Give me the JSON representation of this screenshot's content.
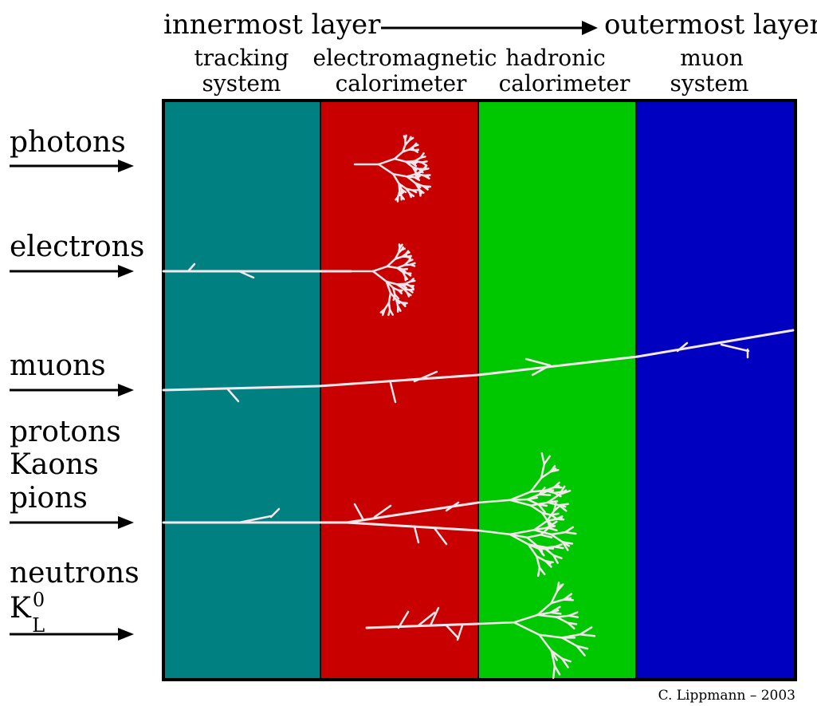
{
  "header": {
    "left": "innermost layer",
    "right": "outermost layer"
  },
  "layers": [
    {
      "line1": "tracking",
      "line2": "system",
      "color": "#008080"
    },
    {
      "line1": "electromagnetic",
      "line2": "calorimeter",
      "color": "#c80000"
    },
    {
      "line1": "hadronic",
      "line2": "calorimeter",
      "color": "#00c800"
    },
    {
      "line1": "muon",
      "line2": "system",
      "color": "#0000c0"
    }
  ],
  "particles": [
    {
      "lines": [
        "photons"
      ]
    },
    {
      "lines": [
        "electrons"
      ]
    },
    {
      "lines": [
        "muons"
      ]
    },
    {
      "lines": [
        "protons",
        "Kaons",
        "pions"
      ]
    },
    {
      "lines": [
        "neutrons"
      ],
      "symbol": {
        "base": "K",
        "sup": "0",
        "sub": "L"
      }
    }
  ],
  "credit": "C. Lippmann – 2003",
  "colors": {
    "track": "#f4e8ec",
    "border": "#000000"
  }
}
